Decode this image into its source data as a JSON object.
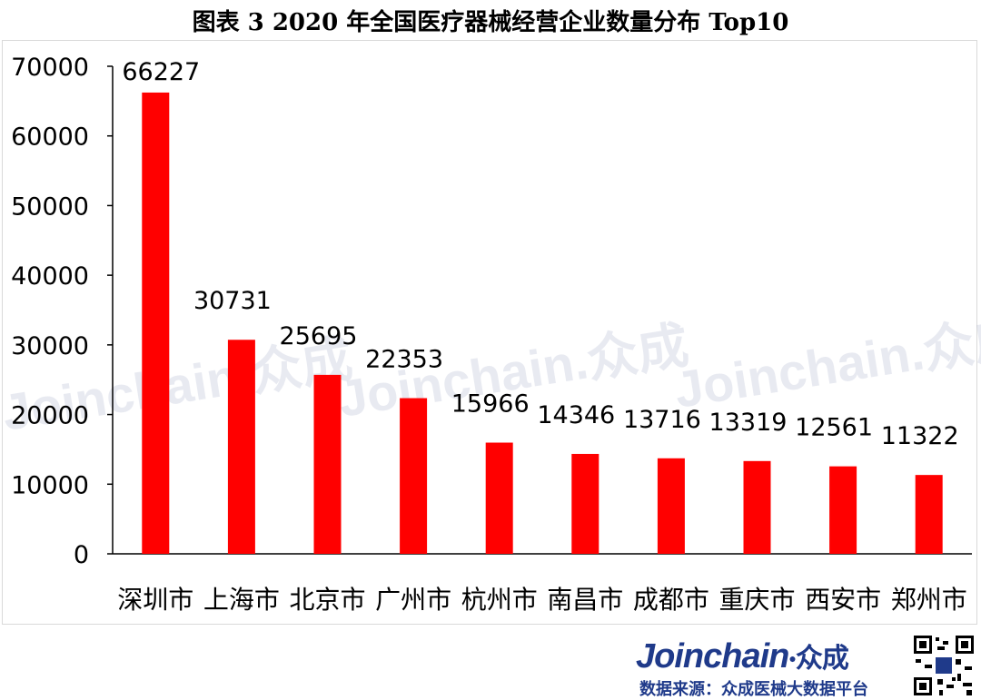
{
  "title": "图表 3   2020 年全国医疗器械经营企业数量分布 Top10",
  "watermark": "Joinchain.众成",
  "footer": {
    "logo_text": "Joinchain",
    "logo_cn": "众成",
    "source": "数据来源：众成医械大数据平台"
  },
  "colors": {
    "bar": "#ff0000",
    "axis": "#000000",
    "footer": "#1f3a8a"
  },
  "chart_data": {
    "type": "bar",
    "categories": [
      "深圳市",
      "上海市",
      "北京市",
      "广州市",
      "杭州市",
      "南昌市",
      "成都市",
      "重庆市",
      "西安市",
      "郑州市"
    ],
    "values": [
      66227,
      30731,
      25695,
      22353,
      15966,
      14346,
      13716,
      13319,
      12561,
      11322
    ],
    "ylim": [
      0,
      70000
    ],
    "yticks": [
      0,
      10000,
      20000,
      30000,
      40000,
      50000,
      60000,
      70000
    ],
    "xlabel": "",
    "ylabel": "",
    "grid": false,
    "data_labels": true
  }
}
